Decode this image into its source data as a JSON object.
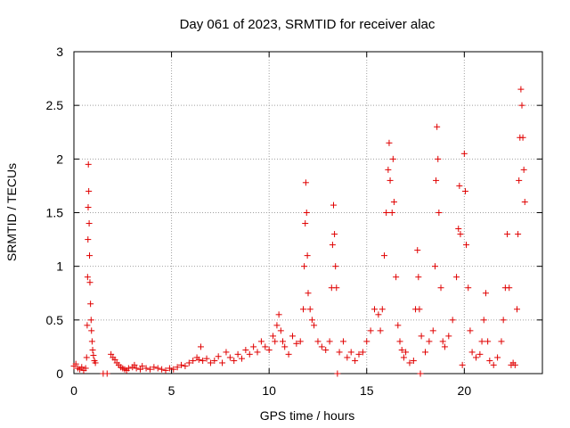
{
  "chart_data": {
    "type": "scatter",
    "title": "Day 061 of 2023, SRMTID for receiver alac",
    "xlabel": "GPS time / hours",
    "ylabel": "SRMTID / TECUs",
    "xlim": [
      0,
      24
    ],
    "ylim": [
      0,
      3
    ],
    "xticks": [
      0,
      5,
      10,
      15,
      20
    ],
    "yticks": [
      0,
      0.5,
      1,
      1.5,
      2,
      2.5,
      3
    ],
    "xtick_labels": [
      "0",
      "5",
      "10",
      "15",
      "20"
    ],
    "ytick_labels": [
      "0",
      "0.5",
      "1",
      "1.5",
      "2",
      "2.5",
      "3"
    ],
    "grid": true,
    "marker": "+",
    "color": "#e00000",
    "series": [
      {
        "name": "SRMTID",
        "points": [
          [
            0.0,
            0.07
          ],
          [
            0.1,
            0.09
          ],
          [
            0.2,
            0.05
          ],
          [
            0.3,
            0.04
          ],
          [
            0.4,
            0.06
          ],
          [
            0.5,
            0.03
          ],
          [
            0.6,
            0.05
          ],
          [
            0.65,
            0.15
          ],
          [
            0.68,
            0.45
          ],
          [
            0.7,
            0.9
          ],
          [
            0.72,
            1.25
          ],
          [
            0.73,
            1.55
          ],
          [
            0.74,
            1.95
          ],
          [
            0.76,
            1.7
          ],
          [
            0.78,
            1.4
          ],
          [
            0.8,
            1.1
          ],
          [
            0.82,
            0.85
          ],
          [
            0.85,
            0.65
          ],
          [
            0.88,
            0.5
          ],
          [
            0.9,
            0.4
          ],
          [
            0.93,
            0.3
          ],
          [
            0.96,
            0.22
          ],
          [
            1.0,
            0.17
          ],
          [
            1.05,
            0.12
          ],
          [
            1.1,
            0.1
          ],
          [
            1.5,
            0.0
          ],
          [
            1.7,
            0.0
          ],
          [
            1.9,
            0.18
          ],
          [
            2.0,
            0.15
          ],
          [
            2.1,
            0.13
          ],
          [
            2.2,
            0.1
          ],
          [
            2.3,
            0.08
          ],
          [
            2.4,
            0.06
          ],
          [
            2.5,
            0.05
          ],
          [
            2.6,
            0.04
          ],
          [
            2.7,
            0.03
          ],
          [
            2.8,
            0.05
          ],
          [
            3.0,
            0.06
          ],
          [
            3.1,
            0.08
          ],
          [
            3.2,
            0.05
          ],
          [
            3.4,
            0.04
          ],
          [
            3.5,
            0.07
          ],
          [
            3.7,
            0.05
          ],
          [
            3.9,
            0.04
          ],
          [
            4.1,
            0.06
          ],
          [
            4.3,
            0.05
          ],
          [
            4.5,
            0.04
          ],
          [
            4.7,
            0.03
          ],
          [
            4.9,
            0.05
          ],
          [
            5.1,
            0.04
          ],
          [
            5.3,
            0.06
          ],
          [
            5.5,
            0.08
          ],
          [
            5.7,
            0.07
          ],
          [
            5.9,
            0.1
          ],
          [
            6.1,
            0.12
          ],
          [
            6.3,
            0.15
          ],
          [
            6.4,
            0.13
          ],
          [
            6.5,
            0.25
          ],
          [
            6.6,
            0.12
          ],
          [
            6.8,
            0.14
          ],
          [
            7.0,
            0.1
          ],
          [
            7.2,
            0.12
          ],
          [
            7.4,
            0.16
          ],
          [
            7.6,
            0.1
          ],
          [
            7.8,
            0.2
          ],
          [
            8.0,
            0.15
          ],
          [
            8.2,
            0.12
          ],
          [
            8.4,
            0.18
          ],
          [
            8.6,
            0.14
          ],
          [
            8.8,
            0.22
          ],
          [
            9.0,
            0.18
          ],
          [
            9.2,
            0.25
          ],
          [
            9.4,
            0.2
          ],
          [
            9.6,
            0.3
          ],
          [
            9.8,
            0.25
          ],
          [
            10.0,
            0.22
          ],
          [
            10.2,
            0.35
          ],
          [
            10.3,
            0.3
          ],
          [
            10.4,
            0.45
          ],
          [
            10.5,
            0.55
          ],
          [
            10.6,
            0.4
          ],
          [
            10.7,
            0.3
          ],
          [
            10.8,
            0.25
          ],
          [
            11.0,
            0.18
          ],
          [
            11.2,
            0.35
          ],
          [
            11.4,
            0.28
          ],
          [
            11.6,
            0.3
          ],
          [
            11.75,
            0.6
          ],
          [
            11.8,
            1.0
          ],
          [
            11.85,
            1.4
          ],
          [
            11.88,
            1.78
          ],
          [
            11.92,
            1.5
          ],
          [
            11.96,
            1.1
          ],
          [
            12.0,
            0.75
          ],
          [
            12.1,
            0.6
          ],
          [
            12.2,
            0.5
          ],
          [
            12.3,
            0.45
          ],
          [
            12.5,
            0.3
          ],
          [
            12.7,
            0.25
          ],
          [
            12.9,
            0.22
          ],
          [
            13.1,
            0.3
          ],
          [
            13.2,
            0.8
          ],
          [
            13.25,
            1.2
          ],
          [
            13.3,
            1.57
          ],
          [
            13.35,
            1.3
          ],
          [
            13.4,
            1.0
          ],
          [
            13.45,
            0.8
          ],
          [
            13.5,
            0.0
          ],
          [
            13.6,
            0.2
          ],
          [
            13.8,
            0.3
          ],
          [
            14.0,
            0.15
          ],
          [
            14.2,
            0.2
          ],
          [
            14.4,
            0.12
          ],
          [
            14.6,
            0.18
          ],
          [
            14.8,
            0.2
          ],
          [
            15.0,
            0.3
          ],
          [
            15.2,
            0.4
          ],
          [
            15.4,
            0.6
          ],
          [
            15.6,
            0.55
          ],
          [
            15.7,
            0.4
          ],
          [
            15.8,
            0.6
          ],
          [
            15.9,
            1.1
          ],
          [
            16.0,
            1.5
          ],
          [
            16.1,
            1.9
          ],
          [
            16.15,
            2.15
          ],
          [
            16.2,
            1.8
          ],
          [
            16.3,
            1.5
          ],
          [
            16.35,
            2.0
          ],
          [
            16.4,
            1.6
          ],
          [
            16.5,
            0.9
          ],
          [
            16.6,
            0.45
          ],
          [
            16.7,
            0.3
          ],
          [
            16.8,
            0.22
          ],
          [
            16.9,
            0.15
          ],
          [
            17.0,
            0.2
          ],
          [
            17.2,
            0.1
          ],
          [
            17.4,
            0.12
          ],
          [
            17.5,
            0.6
          ],
          [
            17.6,
            1.15
          ],
          [
            17.65,
            0.9
          ],
          [
            17.7,
            0.6
          ],
          [
            17.75,
            0.0
          ],
          [
            17.8,
            0.35
          ],
          [
            18.0,
            0.2
          ],
          [
            18.2,
            0.3
          ],
          [
            18.4,
            0.4
          ],
          [
            18.5,
            1.0
          ],
          [
            18.55,
            1.8
          ],
          [
            18.6,
            2.3
          ],
          [
            18.65,
            2.0
          ],
          [
            18.7,
            1.5
          ],
          [
            18.8,
            0.8
          ],
          [
            18.9,
            0.3
          ],
          [
            19.0,
            0.25
          ],
          [
            19.2,
            0.35
          ],
          [
            19.4,
            0.5
          ],
          [
            19.6,
            0.9
          ],
          [
            19.7,
            1.35
          ],
          [
            19.75,
            1.75
          ],
          [
            19.8,
            1.3
          ],
          [
            19.9,
            0.08
          ],
          [
            20.0,
            2.05
          ],
          [
            20.05,
            1.7
          ],
          [
            20.1,
            1.2
          ],
          [
            20.2,
            0.8
          ],
          [
            20.3,
            0.4
          ],
          [
            20.4,
            0.2
          ],
          [
            20.6,
            0.15
          ],
          [
            20.8,
            0.18
          ],
          [
            20.9,
            0.3
          ],
          [
            21.0,
            0.5
          ],
          [
            21.1,
            0.75
          ],
          [
            21.2,
            0.3
          ],
          [
            21.3,
            0.12
          ],
          [
            21.5,
            0.08
          ],
          [
            21.7,
            0.15
          ],
          [
            21.9,
            0.3
          ],
          [
            22.0,
            0.5
          ],
          [
            22.1,
            0.8
          ],
          [
            22.2,
            1.3
          ],
          [
            22.3,
            0.8
          ],
          [
            22.4,
            0.08
          ],
          [
            22.5,
            0.1
          ],
          [
            22.6,
            0.08
          ],
          [
            22.7,
            0.6
          ],
          [
            22.75,
            1.3
          ],
          [
            22.8,
            1.8
          ],
          [
            22.85,
            2.2
          ],
          [
            22.9,
            2.65
          ],
          [
            22.95,
            2.5
          ],
          [
            23.0,
            2.2
          ],
          [
            23.05,
            1.9
          ],
          [
            23.1,
            1.6
          ]
        ]
      }
    ]
  }
}
